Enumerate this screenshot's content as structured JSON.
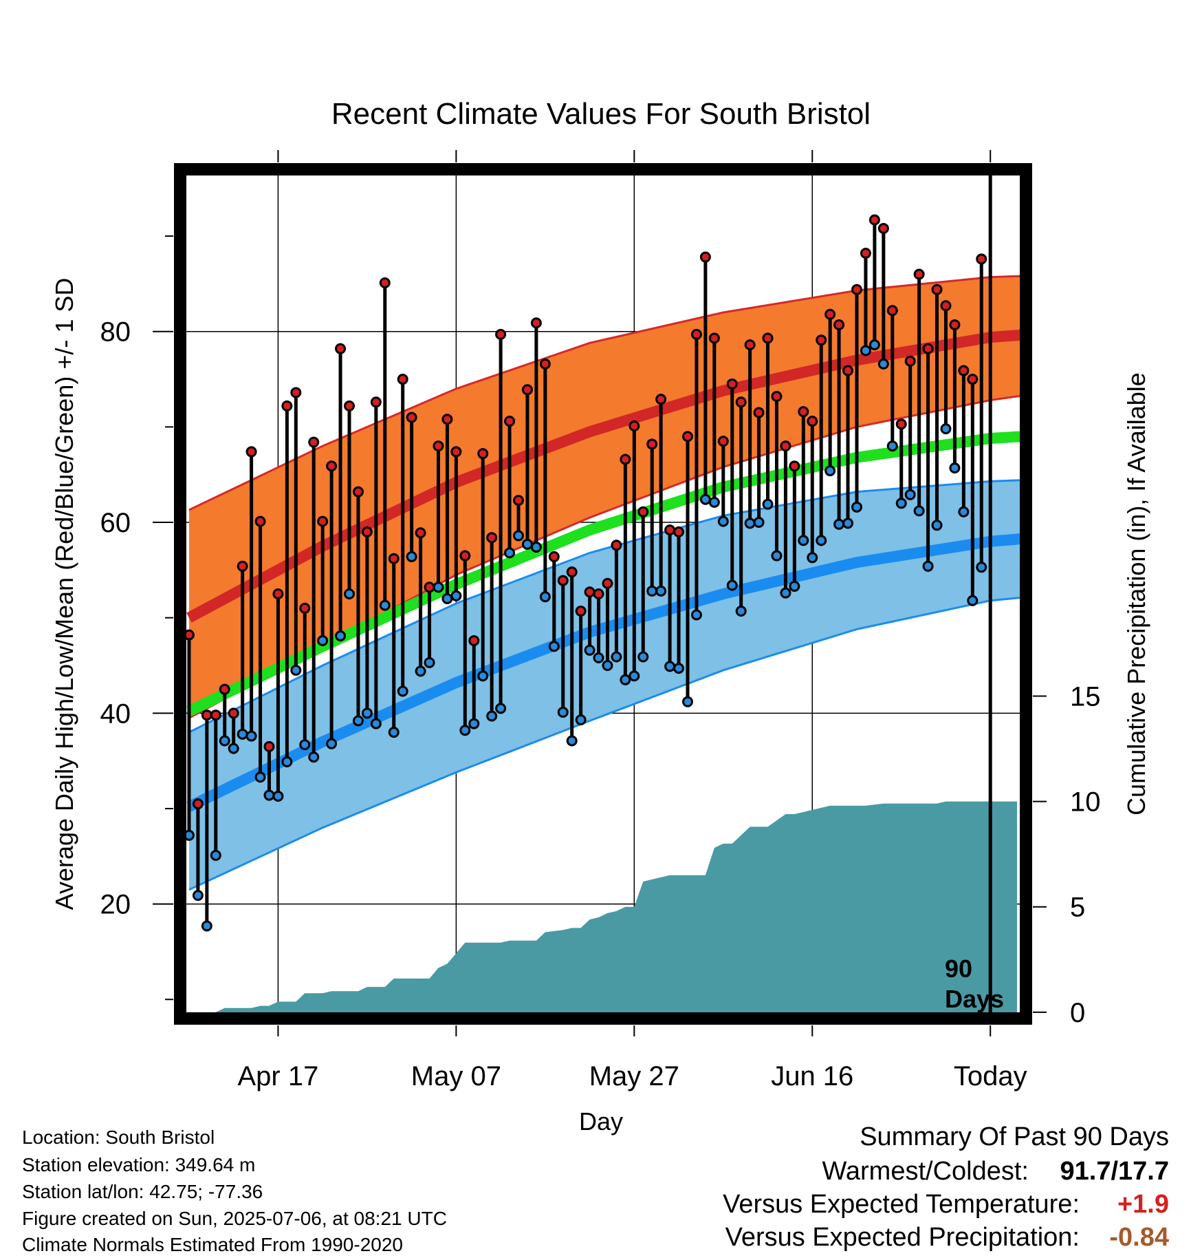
{
  "chart_data": {
    "type": "line",
    "title": "Recent Climate Values For South Bristol",
    "xlabel": "Day",
    "ylabel": "Average Daily High/Low/Mean (Red/Blue/Green) +/- 1 SD",
    "y2label": "Cumulative Precipitation (in), If Available",
    "x_tick_labels": [
      "Apr 17",
      "May 07",
      "May 27",
      "Jun 16",
      "Today"
    ],
    "x_tick_days": [
      10,
      30,
      50,
      70,
      90
    ],
    "xlim": [
      -1,
      94
    ],
    "ylim": [
      8,
      97
    ],
    "y_ticks": [
      20,
      40,
      60,
      80
    ],
    "y2lim": [
      -0.3,
      40
    ],
    "y2_ticks": [
      0,
      5,
      10,
      15
    ],
    "grid": true,
    "today_marker": {
      "x": 90,
      "label_line1": "90",
      "label_line2": "Days"
    },
    "colors": {
      "high_band": "#f47a2e",
      "high_band_edge": "#d42a2a",
      "high_mean": "#d12727",
      "low_band": "#7ec0e6",
      "low_band_edge": "#1a8cf0",
      "low_mean": "#1a8cf0",
      "mean": "#1ee01e",
      "precip": "#4a9aa4",
      "high_dot": "#d42020",
      "low_dot": "#2a8ad8",
      "positive_anomaly": "#d42020",
      "negative_anomaly": "#a65a2a"
    },
    "normals": {
      "x": [
        0,
        15,
        30,
        45,
        60,
        75,
        90,
        99
      ],
      "high_mean": [
        50,
        57.5,
        64.2,
        69.5,
        73.8,
        77.0,
        79.4,
        80.0
      ],
      "high_upper": [
        61.3,
        68.0,
        74.0,
        78.8,
        82.0,
        84.3,
        85.7,
        86.0
      ],
      "high_lower": [
        39.5,
        47.0,
        54.5,
        60.5,
        65.8,
        70.0,
        72.8,
        74.0
      ],
      "mean": [
        40.2,
        47.0,
        53.5,
        59.2,
        63.7,
        66.8,
        68.8,
        69.3
      ],
      "low_mean": [
        30.2,
        37.0,
        43.2,
        48.5,
        52.5,
        55.8,
        58.0,
        58.7
      ],
      "low_upper": [
        38.0,
        45.0,
        51.5,
        56.8,
        60.7,
        63.2,
        64.3,
        64.6
      ],
      "low_lower": [
        21.5,
        28.0,
        33.8,
        39.2,
        44.5,
        48.8,
        51.8,
        52.6
      ]
    },
    "series": [
      {
        "name": "High",
        "values": [
          48.2,
          30.5,
          39.8,
          39.8,
          42.5,
          40.0,
          55.4,
          67.4,
          60.1,
          36.5,
          52.5,
          72.2,
          73.6,
          51.0,
          68.4,
          60.1,
          65.9,
          78.2,
          72.2,
          63.2,
          59.0,
          72.6,
          85.1,
          56.2,
          75.0,
          71.0,
          58.9,
          53.2,
          68.0,
          70.8,
          67.4,
          56.5,
          47.6,
          67.2,
          58.4,
          79.7,
          70.6,
          62.3,
          73.9,
          80.9,
          76.6,
          56.4,
          53.9,
          54.8,
          50.7,
          52.7,
          52.5,
          53.6,
          57.6,
          66.6,
          70.1,
          61.1,
          68.2,
          72.9,
          59.2,
          59.0,
          69.0,
          79.7,
          87.8,
          79.3,
          68.5,
          74.5,
          72.6,
          78.6,
          71.5,
          79.3,
          73.2,
          68.0,
          65.9,
          71.6,
          70.6,
          79.1,
          81.8,
          80.7,
          75.9,
          84.4,
          88.2,
          91.7,
          90.8,
          82.2,
          70.3,
          76.9,
          86.0,
          78.2,
          84.4,
          82.7,
          80.7,
          75.9,
          75.0,
          87.6
        ],
        "marker_color": "#d42020"
      },
      {
        "name": "Low",
        "values": [
          27.2,
          20.9,
          17.7,
          25.1,
          37.1,
          36.3,
          37.8,
          37.6,
          33.3,
          31.4,
          31.3,
          34.9,
          44.5,
          36.7,
          35.4,
          47.6,
          36.8,
          48.1,
          52.5,
          39.2,
          40.0,
          38.9,
          51.3,
          38.0,
          42.3,
          56.4,
          44.4,
          45.3,
          53.2,
          52.0,
          52.3,
          38.2,
          38.9,
          43.9,
          39.7,
          40.5,
          56.8,
          58.6,
          57.7,
          57.4,
          52.2,
          47.0,
          40.1,
          37.1,
          39.3,
          46.6,
          45.8,
          45.0,
          45.9,
          43.5,
          43.9,
          45.9,
          52.8,
          52.8,
          44.9,
          44.7,
          41.2,
          50.3,
          62.4,
          62.1,
          60.1,
          53.4,
          50.7,
          59.9,
          60.0,
          61.9,
          56.5,
          52.6,
          53.3,
          58.1,
          56.3,
          58.1,
          65.4,
          59.8,
          59.9,
          61.6,
          78.0,
          78.6,
          76.6,
          68.0,
          62.0,
          62.9,
          61.2,
          55.4,
          59.7,
          69.8,
          65.7,
          61.1,
          51.8,
          55.3
        ],
        "marker_color": "#2a8ad8"
      }
    ],
    "precip_cumulative": {
      "x": [
        0,
        3,
        4,
        7,
        8,
        9,
        10,
        11,
        12,
        13,
        15,
        16,
        17,
        18,
        19,
        20,
        21,
        22,
        23,
        24,
        25,
        26,
        27,
        28,
        29,
        30,
        31,
        33,
        35,
        36,
        37,
        38,
        39,
        40,
        42,
        43,
        44,
        45,
        46,
        47,
        48,
        49,
        50,
        51,
        52,
        54,
        56,
        57,
        58,
        59,
        60,
        61,
        63,
        64,
        65,
        67,
        68,
        70,
        72,
        73,
        75,
        76,
        78,
        80,
        82,
        84,
        85,
        87,
        89,
        91,
        92,
        93
      ],
      "values": [
        0,
        0,
        0.2,
        0.2,
        0.3,
        0.3,
        0.5,
        0.5,
        0.5,
        0.9,
        0.9,
        1.0,
        1.0,
        1.0,
        1.0,
        1.2,
        1.2,
        1.2,
        1.6,
        1.6,
        1.6,
        1.6,
        1.6,
        2.1,
        2.3,
        2.8,
        3.3,
        3.3,
        3.3,
        3.4,
        3.4,
        3.4,
        3.4,
        3.8,
        3.9,
        4.0,
        4.0,
        4.4,
        4.5,
        4.7,
        4.8,
        5.0,
        5.0,
        6.2,
        6.3,
        6.5,
        6.5,
        6.5,
        6.5,
        7.8,
        8.0,
        8.0,
        8.8,
        8.8,
        8.8,
        9.4,
        9.4,
        9.6,
        9.8,
        9.8,
        9.8,
        9.8,
        9.9,
        9.9,
        9.9,
        9.9,
        10.0,
        10.0,
        10.0,
        10.0,
        10.0,
        10.0
      ]
    }
  },
  "info": {
    "line1": "Location: South Bristol",
    "line2": "Station elevation: 349.64 m",
    "line3": "Station lat/lon: 42.75; -77.36",
    "line4": "Figure created on Sun, 2025-07-06, at 08:21 UTC",
    "line5": "Climate Normals Estimated From 1990-2020"
  },
  "summary": {
    "heading": "Summary Of Past 90 Days",
    "warm_cold_label": "Warmest/Coldest:",
    "warm_cold_value": "91.7/17.7",
    "temp_label": "Versus Expected Temperature:",
    "temp_value": "+1.9",
    "precip_label": "Versus Expected Precipitation:",
    "precip_value": "-0.84"
  }
}
